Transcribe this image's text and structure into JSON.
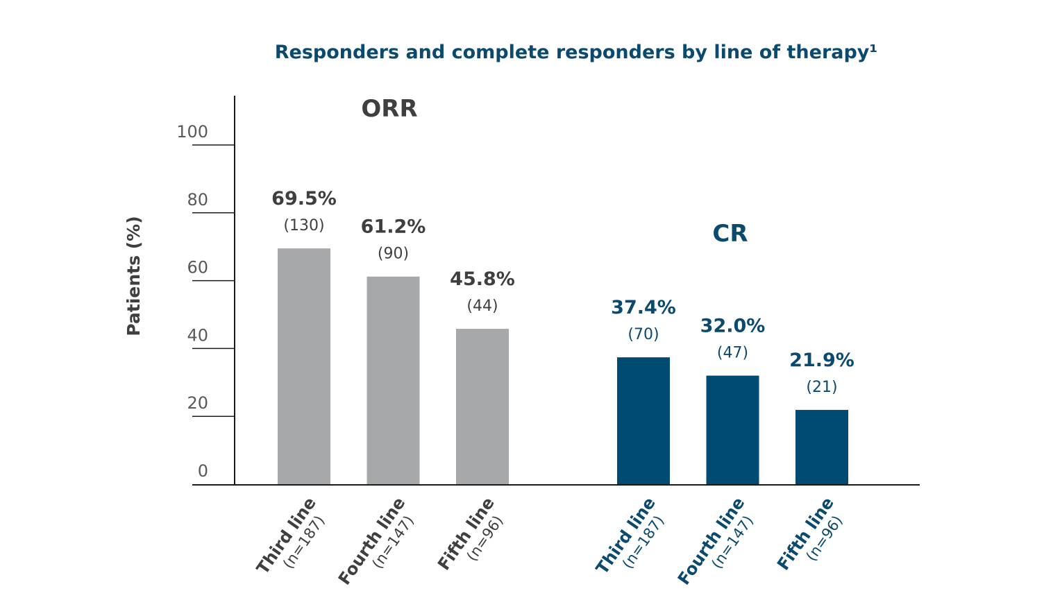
{
  "chart_data": {
    "type": "bar",
    "title": "Responders and complete responders by line of therapy¹",
    "ylabel": "Patients (%)",
    "ylim": [
      0,
      100
    ],
    "yticks": [
      "0",
      "20",
      "40",
      "60",
      "80",
      "100"
    ],
    "grid": false,
    "colors": {
      "ORR": "#a7a8aa",
      "CR": "#004b71",
      "ORR_text": "#3f3f3f",
      "CR_text": "#0b4a6f"
    },
    "groups": [
      {
        "name": "ORR",
        "key": "ORR",
        "categories": [
          {
            "line": "Third line",
            "n": "(n=187)"
          },
          {
            "line": "Fourth line",
            "n": "(n=147)"
          },
          {
            "line": "Fifth line",
            "n": "(n=96)"
          }
        ],
        "values": [
          69.5,
          61.2,
          45.8
        ],
        "value_labels": [
          "69.5%",
          "61.2%",
          "45.8%"
        ],
        "counts": [
          "(130)",
          "(90)",
          "(44)"
        ]
      },
      {
        "name": "CR",
        "key": "CR",
        "categories": [
          {
            "line": "Third line",
            "n": "(n=187)"
          },
          {
            "line": "Fourth line",
            "n": "(n=147)"
          },
          {
            "line": "Fifth line",
            "n": "(n=96)"
          }
        ],
        "values": [
          37.4,
          32.0,
          21.9
        ],
        "value_labels": [
          "37.4%",
          "32.0%",
          "21.9%"
        ],
        "counts": [
          "(70)",
          "(47)",
          "(21)"
        ]
      }
    ]
  }
}
